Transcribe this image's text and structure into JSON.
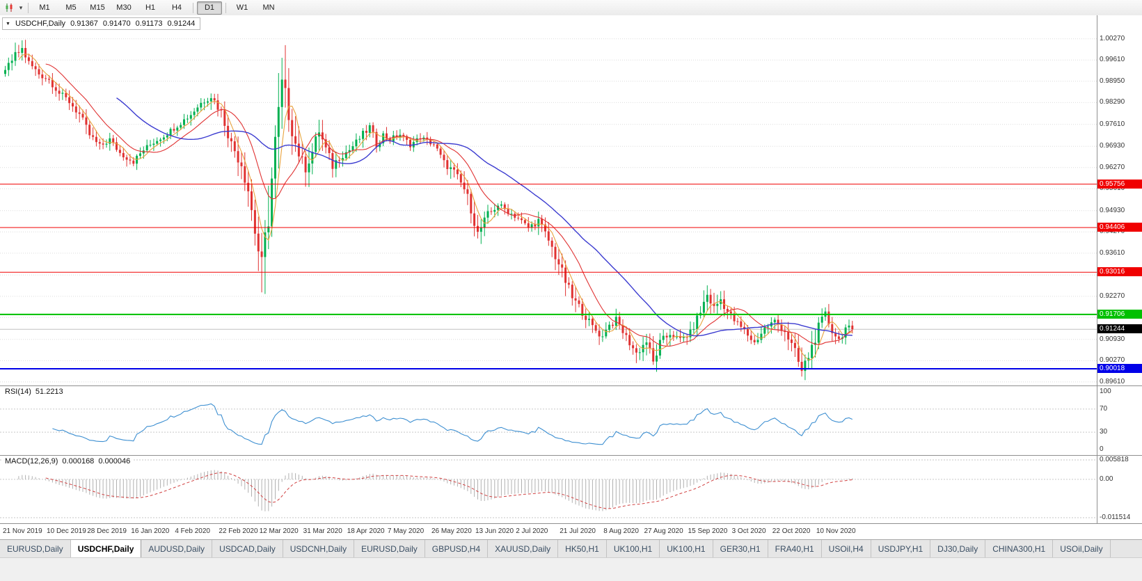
{
  "toolbar": {
    "timeframe_groups": [
      [
        "M1",
        "M5",
        "M15",
        "M30",
        "H1",
        "H4"
      ],
      [
        "D1"
      ],
      [
        "W1",
        "MN"
      ]
    ],
    "active_timeframe": "D1"
  },
  "chart": {
    "header": {
      "symbol": "USDCHF,Daily",
      "open": "0.91367",
      "high": "0.91470",
      "low": "0.91173",
      "close": "0.91244"
    }
  },
  "rsi": {
    "label": "RSI(14)",
    "value": "51.2213"
  },
  "macd": {
    "label": "MACD(12,26,9)",
    "value_main": "0.000168",
    "value_signal": "0.000046"
  },
  "tabs": {
    "active_index": 1,
    "labels": [
      "EURUSD,Daily",
      "USDCHF,Daily",
      "AUDUSD,Daily",
      "USDCAD,Daily",
      "USDCNH,Daily",
      "EURUSD,Daily",
      "GBPUSD,H4",
      "XAUUSD,Daily",
      "HK50,H1",
      "UK100,H1",
      "UK100,H1",
      "GER30,H1",
      "FRA40,H1",
      "USOil,H4",
      "USDJPY,H1",
      "DJ30,Daily",
      "CHINA300,H1",
      "USOil,Daily"
    ]
  },
  "chart_data": {
    "type": "candlestick",
    "symbol": "USDCHF",
    "timeframe": "Daily",
    "current_ohlc": {
      "open": 0.91367,
      "high": 0.9147,
      "low": 0.91173,
      "close": 0.91244
    },
    "bars": 252,
    "y_domain": [
      0.895,
      1.01
    ],
    "price_ticks": [
      {
        "label": "1.00270",
        "value": 1.0027
      },
      {
        "label": "0.99610",
        "value": 0.9961
      },
      {
        "label": "0.98950",
        "value": 0.9895
      },
      {
        "label": "0.98290",
        "value": 0.9829
      },
      {
        "label": "0.97610",
        "value": 0.9761
      },
      {
        "label": "0.96930",
        "value": 0.9693
      },
      {
        "label": "0.96270",
        "value": 0.9627
      },
      {
        "label": "0.95610",
        "value": 0.9561
      },
      {
        "label": "0.94930",
        "value": 0.9493
      },
      {
        "label": "0.94270",
        "value": 0.9427
      },
      {
        "label": "0.93610",
        "value": 0.9361
      },
      {
        "label": "0.92930",
        "value": 0.9293
      },
      {
        "label": "0.92270",
        "value": 0.9227
      },
      {
        "label": "0.91610",
        "value": 0.9161
      },
      {
        "label": "0.90930",
        "value": 0.9093
      },
      {
        "label": "0.90270",
        "value": 0.9027
      },
      {
        "label": "0.89610",
        "value": 0.8961
      }
    ],
    "hlines": [
      {
        "value": 0.95756,
        "label": "0.95756",
        "color": "#f00000",
        "width": 1
      },
      {
        "value": 0.94406,
        "label": "0.94406",
        "color": "#f00000",
        "width": 1
      },
      {
        "value": 0.93016,
        "label": "0.93016",
        "color": "#f00000",
        "width": 1
      },
      {
        "value": 0.91706,
        "label": "0.91706",
        "color": "#00c000",
        "width": 2
      },
      {
        "value": 0.90018,
        "label": "0.90018",
        "color": "#0000e8",
        "width": 2
      }
    ],
    "current_price": {
      "label": "0.91244",
      "value": 0.91244
    },
    "x_labels": [
      {
        "text": "21 Nov 2019",
        "bar": 0
      },
      {
        "text": "10 Dec 2019",
        "bar": 13
      },
      {
        "text": "28 Dec 2019",
        "bar": 25
      },
      {
        "text": "16 Jan 2020",
        "bar": 38
      },
      {
        "text": "4 Feb 2020",
        "bar": 51
      },
      {
        "text": "22 Feb 2020",
        "bar": 64
      },
      {
        "text": "12 Mar 2020",
        "bar": 76
      },
      {
        "text": "31 Mar 2020",
        "bar": 89
      },
      {
        "text": "18 Apr 2020",
        "bar": 102
      },
      {
        "text": "7 May 2020",
        "bar": 114
      },
      {
        "text": "26 May 2020",
        "bar": 127
      },
      {
        "text": "13 Jun 2020",
        "bar": 140
      },
      {
        "text": "2 Jul 2020",
        "bar": 152
      },
      {
        "text": "21 Jul 2020",
        "bar": 165
      },
      {
        "text": "8 Aug 2020",
        "bar": 178
      },
      {
        "text": "27 Aug 2020",
        "bar": 190
      },
      {
        "text": "15 Sep 2020",
        "bar": 203
      },
      {
        "text": "3 Oct 2020",
        "bar": 216
      },
      {
        "text": "22 Oct 2020",
        "bar": 228
      },
      {
        "text": "10 Nov 2020",
        "bar": 241
      }
    ],
    "close_anchors": [
      [
        0,
        0.993
      ],
      [
        3,
        0.9975
      ],
      [
        5,
        0.9995
      ],
      [
        7,
        0.9952
      ],
      [
        10,
        0.9918
      ],
      [
        13,
        0.99
      ],
      [
        16,
        0.9858
      ],
      [
        19,
        0.9832
      ],
      [
        22,
        0.9792
      ],
      [
        25,
        0.9728
      ],
      [
        28,
        0.9692
      ],
      [
        31,
        0.9714
      ],
      [
        34,
        0.9672
      ],
      [
        38,
        0.9646
      ],
      [
        41,
        0.9682
      ],
      [
        44,
        0.9706
      ],
      [
        47,
        0.9726
      ],
      [
        51,
        0.9758
      ],
      [
        55,
        0.9792
      ],
      [
        58,
        0.9828
      ],
      [
        61,
        0.985
      ],
      [
        64,
        0.98
      ],
      [
        67,
        0.97
      ],
      [
        70,
        0.9642
      ],
      [
        72,
        0.956
      ],
      [
        74,
        0.9432
      ],
      [
        76,
        0.931
      ],
      [
        78,
        0.948
      ],
      [
        80,
        0.97
      ],
      [
        82,
        0.9878
      ],
      [
        84,
        0.98
      ],
      [
        86,
        0.9702
      ],
      [
        88,
        0.9642
      ],
      [
        89,
        0.963
      ],
      [
        91,
        0.9676
      ],
      [
        93,
        0.9742
      ],
      [
        95,
        0.9682
      ],
      [
        97,
        0.9632
      ],
      [
        99,
        0.966
      ],
      [
        102,
        0.9682
      ],
      [
        105,
        0.9718
      ],
      [
        108,
        0.9752
      ],
      [
        110,
        0.97
      ],
      [
        112,
        0.9728
      ],
      [
        114,
        0.9714
      ],
      [
        117,
        0.973
      ],
      [
        120,
        0.9698
      ],
      [
        123,
        0.972
      ],
      [
        127,
        0.97
      ],
      [
        130,
        0.9642
      ],
      [
        133,
        0.9612
      ],
      [
        136,
        0.956
      ],
      [
        138,
        0.9502
      ],
      [
        140,
        0.942
      ],
      [
        143,
        0.9478
      ],
      [
        146,
        0.9512
      ],
      [
        149,
        0.949
      ],
      [
        152,
        0.947
      ],
      [
        155,
        0.944
      ],
      [
        158,
        0.9462
      ],
      [
        161,
        0.94
      ],
      [
        164,
        0.933
      ],
      [
        165,
        0.93
      ],
      [
        168,
        0.9222
      ],
      [
        171,
        0.918
      ],
      [
        174,
        0.9132
      ],
      [
        177,
        0.91
      ],
      [
        178,
        0.913
      ],
      [
        181,
        0.9152
      ],
      [
        184,
        0.91
      ],
      [
        187,
        0.905
      ],
      [
        190,
        0.9088
      ],
      [
        192,
        0.902
      ],
      [
        194,
        0.908
      ],
      [
        197,
        0.9112
      ],
      [
        200,
        0.9092
      ],
      [
        203,
        0.9112
      ],
      [
        206,
        0.918
      ],
      [
        208,
        0.9232
      ],
      [
        210,
        0.919
      ],
      [
        212,
        0.9218
      ],
      [
        214,
        0.918
      ],
      [
        216,
        0.9152
      ],
      [
        219,
        0.912
      ],
      [
        222,
        0.9082
      ],
      [
        225,
        0.9128
      ],
      [
        228,
        0.915
      ],
      [
        231,
        0.912
      ],
      [
        234,
        0.9052
      ],
      [
        236,
        0.8992
      ],
      [
        238,
        0.9042
      ],
      [
        241,
        0.9128
      ],
      [
        243,
        0.9168
      ],
      [
        245,
        0.9122
      ],
      [
        247,
        0.9092
      ],
      [
        249,
        0.9128
      ],
      [
        251,
        0.91244
      ]
    ],
    "indicators": {
      "ma_fast": {
        "type": "sma",
        "period": 5,
        "color": "#e8a33d"
      },
      "ma_mid": {
        "type": "sma",
        "period": 13,
        "color": "#e03232"
      },
      "ma_slow": {
        "type": "sma",
        "period": 34,
        "color": "#3b3bd0"
      },
      "rsi": {
        "period": 14,
        "current": 51.2213,
        "levels": [
          100,
          70,
          30,
          0
        ],
        "dashed_levels": [
          70,
          30
        ],
        "color": "#3d8fd1"
      },
      "macd": {
        "fast": 12,
        "slow": 26,
        "signal": 9,
        "current_main": 0.000168,
        "current_signal": 4.6e-05,
        "range": [
          -0.011514,
          0.005818
        ],
        "axis_labels": [
          {
            "label": "0.005818",
            "value": 0.005818
          },
          {
            "label": "0.00",
            "value": 0
          },
          {
            "label": "-0.011514",
            "value": -0.011514
          }
        ],
        "hist_color": "#b0b0b0",
        "signal_color": "#d04040"
      }
    },
    "colors": {
      "up": "#00b050",
      "down": "#e03232",
      "grid": "#dcdcdc",
      "background": "#ffffff",
      "current_price_badge": "#000000",
      "bid_line": "#c0c0c0"
    }
  }
}
